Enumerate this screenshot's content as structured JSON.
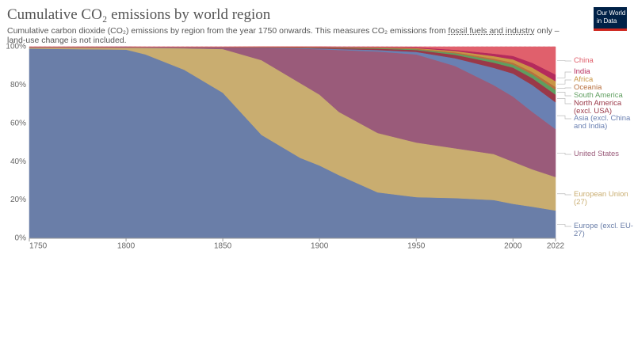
{
  "chart_data": {
    "type": "stacked-area",
    "title": "Cumulative CO₂ emissions by world region",
    "subtitle": [
      "Cumulative carbon dioxide (CO₂) emissions by region from the year 1750 onwards. This measures CO₂ emissions from ",
      "fossil fuels and industry",
      " only – land-use change is not included."
    ],
    "logo": "Our World in Data",
    "x": [
      1750,
      1800,
      1810,
      1830,
      1850,
      1870,
      1890,
      1900,
      1910,
      1930,
      1950,
      1970,
      1990,
      2000,
      2010,
      2022
    ],
    "xlim": [
      1750,
      2022
    ],
    "xticks": [
      1750,
      1800,
      1850,
      1900,
      1950,
      2000,
      2022
    ],
    "ylim": [
      0,
      100
    ],
    "yticks": [
      {
        "value": 0,
        "label": "0%"
      },
      {
        "value": 20,
        "label": "20%"
      },
      {
        "value": 40,
        "label": "40%"
      },
      {
        "value": 60,
        "label": "60%"
      },
      {
        "value": 80,
        "label": "80%"
      },
      {
        "value": 100,
        "label": "100%"
      }
    ],
    "grid": true,
    "series": [
      {
        "name": "Europe (excl. EU-27)",
        "color": "#6a7ea8",
        "values": [
          99,
          98.5,
          96,
          88,
          76,
          54,
          42,
          38,
          33,
          24,
          21.5,
          21,
          20,
          18,
          16.5,
          14.5
        ]
      },
      {
        "name": "European Union (27)",
        "color": "#c9ad70",
        "values": [
          0.5,
          1,
          3.4,
          11.2,
          22.8,
          39,
          39,
          37,
          33,
          31,
          28.5,
          26,
          24,
          22,
          19.5,
          17.5
        ]
      },
      {
        "name": "United States",
        "color": "#9a5b7a",
        "values": [
          0.1,
          0.2,
          0.2,
          0.3,
          0.7,
          6.3,
          18,
          23.7,
          32.3,
          42.5,
          46,
          43,
          36,
          34,
          30,
          25
        ]
      },
      {
        "name": "Asia (excl. China and India)",
        "color": "#6a80b2",
        "values": [
          0.1,
          0.1,
          0.1,
          0.1,
          0.1,
          0.2,
          0.3,
          0.4,
          0.5,
          0.8,
          1.3,
          4,
          9,
          12,
          14,
          14
        ]
      },
      {
        "name": "North America (excl. USA)",
        "color": "#9a3848",
        "values": [
          0.1,
          0.1,
          0.1,
          0.1,
          0.1,
          0.2,
          0.3,
          0.4,
          0.5,
          0.7,
          1,
          1.8,
          2.7,
          3.1,
          3.6,
          4
        ]
      },
      {
        "name": "South America",
        "color": "#5f9e5f",
        "values": [
          0,
          0,
          0,
          0,
          0,
          0,
          0.1,
          0.1,
          0.2,
          0.3,
          0.4,
          0.8,
          1.3,
          1.6,
          2,
          2.5
        ]
      },
      {
        "name": "Oceania",
        "color": "#b8703e",
        "values": [
          0,
          0,
          0,
          0,
          0,
          0.1,
          0.1,
          0.1,
          0.1,
          0.2,
          0.3,
          0.5,
          0.8,
          1,
          1.2,
          1.5
        ]
      },
      {
        "name": "Africa",
        "color": "#c99545",
        "values": [
          0,
          0,
          0,
          0.1,
          0.1,
          0.1,
          0.1,
          0.1,
          0.1,
          0.2,
          0.3,
          0.7,
          1.3,
          1.7,
          2.3,
          3
        ]
      },
      {
        "name": "India",
        "color": "#b52a5c",
        "values": [
          0.1,
          0.05,
          0.1,
          0.1,
          0.1,
          0.1,
          0.1,
          0.2,
          0.2,
          0.2,
          0.4,
          0.6,
          1.3,
          1.8,
          2.5,
          3.5
        ]
      },
      {
        "name": "China",
        "color": "#e0606c",
        "values": [
          0.1,
          0.05,
          0.1,
          0.1,
          0.1,
          0,
          0,
          0,
          0.1,
          0.1,
          0.3,
          1.6,
          3.6,
          4.8,
          8.4,
          14.5
        ]
      }
    ]
  }
}
